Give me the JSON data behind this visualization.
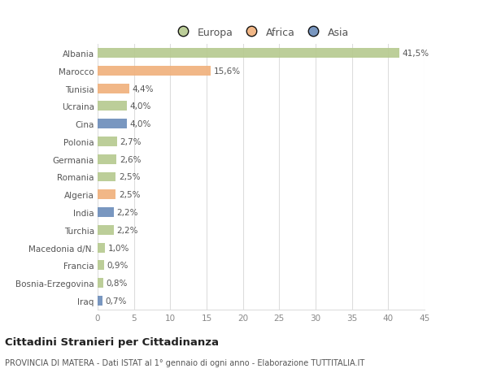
{
  "categories": [
    "Albania",
    "Marocco",
    "Tunisia",
    "Ucraina",
    "Cina",
    "Polonia",
    "Germania",
    "Romania",
    "Algeria",
    "India",
    "Turchia",
    "Macedonia d/N.",
    "Francia",
    "Bosnia-Erzegovina",
    "Iraq"
  ],
  "values": [
    41.5,
    15.6,
    4.4,
    4.0,
    4.0,
    2.7,
    2.6,
    2.5,
    2.5,
    2.2,
    2.2,
    1.0,
    0.9,
    0.8,
    0.7
  ],
  "labels": [
    "41,5%",
    "15,6%",
    "4,4%",
    "4,0%",
    "4,0%",
    "2,7%",
    "2,6%",
    "2,5%",
    "2,5%",
    "2,2%",
    "2,2%",
    "1,0%",
    "0,9%",
    "0,8%",
    "0,7%"
  ],
  "colors": [
    "#b5c98e",
    "#f0b07a",
    "#f0b07a",
    "#b5c98e",
    "#6b8cba",
    "#b5c98e",
    "#b5c98e",
    "#b5c98e",
    "#f0b07a",
    "#6b8cba",
    "#b5c98e",
    "#b5c98e",
    "#b5c98e",
    "#b5c98e",
    "#6b8cba"
  ],
  "legend_labels": [
    "Europa",
    "Africa",
    "Asia"
  ],
  "legend_colors": [
    "#b5c98e",
    "#f0b07a",
    "#6b8cba"
  ],
  "xlim": [
    0,
    45
  ],
  "xticks": [
    0,
    5,
    10,
    15,
    20,
    25,
    30,
    35,
    40,
    45
  ],
  "title": "Cittadini Stranieri per Cittadinanza",
  "subtitle": "PROVINCIA DI MATERA - Dati ISTAT al 1° gennaio di ogni anno - Elaborazione TUTTITALIA.IT",
  "background_color": "#ffffff",
  "grid_color": "#dddddd",
  "bar_height": 0.55,
  "label_fontsize": 7.5,
  "tick_fontsize": 7.5,
  "ytick_fontsize": 7.5
}
